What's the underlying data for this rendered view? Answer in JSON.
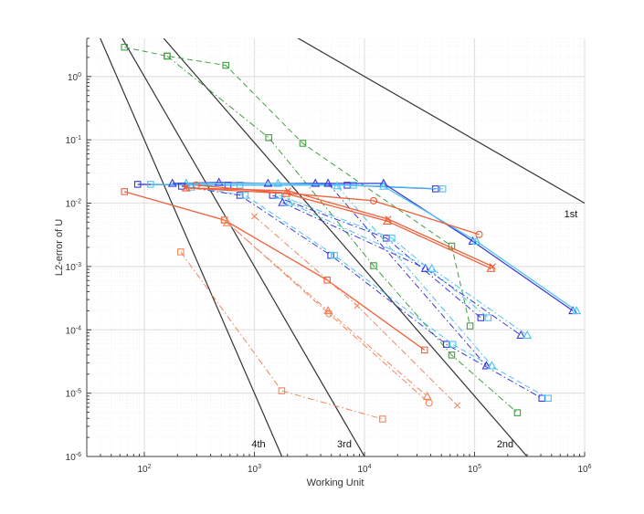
{
  "chart_data": {
    "type": "line",
    "title": "",
    "xlabel": "Working Unit",
    "ylabel": "L2-error of U",
    "xscale": "log",
    "yscale": "log",
    "xlim": [
      30,
      1000000
    ],
    "ylim": [
      1e-06,
      4
    ],
    "grid": "major and minor",
    "legend": "none",
    "x_ticks": [
      100,
      1000,
      10000,
      100000,
      1000000
    ],
    "x_tick_labels": [
      {
        "base": "10",
        "exp": "2"
      },
      {
        "base": "10",
        "exp": "3"
      },
      {
        "base": "10",
        "exp": "4"
      },
      {
        "base": "10",
        "exp": "5"
      },
      {
        "base": "10",
        "exp": "6"
      }
    ],
    "y_ticks": [
      1e-06,
      1e-05,
      0.0001,
      0.001,
      0.01,
      0.1,
      1
    ],
    "y_tick_labels": [
      {
        "base": "10",
        "exp": "-6"
      },
      {
        "base": "10",
        "exp": "-5"
      },
      {
        "base": "10",
        "exp": "-4"
      },
      {
        "base": "10",
        "exp": "-3"
      },
      {
        "base": "10",
        "exp": "-2"
      },
      {
        "base": "10",
        "exp": "-1"
      },
      {
        "base": "10",
        "exp": "0"
      }
    ],
    "reference_lines": [
      {
        "label": "1st",
        "order": 1,
        "color": "#333333",
        "points": [
          [
            10,
            1000
          ],
          [
            1000000,
            0.01
          ]
        ]
      },
      {
        "label": "2nd",
        "order": 2,
        "color": "#333333",
        "points": [
          [
            10,
            900
          ],
          [
            300000,
            1e-06
          ]
        ]
      },
      {
        "label": "3rd",
        "order": 3,
        "color": "#333333",
        "points": [
          [
            10,
            1000
          ],
          [
            10000,
            1e-06
          ]
        ]
      },
      {
        "label": "4th",
        "order": 4,
        "color": "#333333",
        "points": [
          [
            10,
            1000
          ],
          [
            1778,
            1e-06
          ]
        ]
      }
    ],
    "series": [
      {
        "color": "#3f9f3f",
        "dash": "dashed",
        "marker": "square",
        "points": [
          [
            66,
            2.9
          ],
          [
            161,
            2.1
          ],
          [
            550,
            1.5
          ],
          [
            2750,
            0.088
          ],
          [
            62000,
            0.0021
          ],
          [
            91000,
            0.000115
          ]
        ]
      },
      {
        "color": "#3f9f3f",
        "dash": "dashdot",
        "marker": "square",
        "points": [
          [
            161,
            2.1
          ],
          [
            1350,
            0.108
          ],
          [
            12100,
            0.00103
          ],
          [
            62000,
            4e-05
          ],
          [
            245000,
            4.9e-06
          ]
        ]
      },
      {
        "color": "#3838e0",
        "dash": "solid",
        "marker": "square",
        "points": [
          [
            87,
            0.0198
          ],
          [
            575,
            0.0192
          ],
          [
            6970,
            0.0192
          ],
          [
            44200,
            0.0168
          ]
        ]
      },
      {
        "color": "#4cc3f0",
        "dash": "solid",
        "marker": "square",
        "points": [
          [
            114,
            0.0198
          ],
          [
            738,
            0.0192
          ],
          [
            7960,
            0.0192
          ],
          [
            51400,
            0.0168
          ]
        ]
      },
      {
        "color": "#3838e0",
        "dash": "solid",
        "marker": "triangle",
        "points": [
          [
            180,
            0.0205
          ],
          [
            476,
            0.0212
          ],
          [
            1330,
            0.0205
          ],
          [
            3580,
            0.0205
          ],
          [
            14900,
            0.0205
          ],
          [
            96200,
            0.0025
          ],
          [
            781000,
            0.0002
          ]
        ]
      },
      {
        "color": "#4cc3f0",
        "dash": "solid",
        "marker": "triangle",
        "points": [
          [
            240,
            0.0205
          ],
          [
            1640,
            0.0205
          ],
          [
            14900,
            0.0185
          ],
          [
            104000,
            0.0025
          ],
          [
            843000,
            0.0002
          ]
        ]
      },
      {
        "color": "#3838e0",
        "dash": "dashdot",
        "marker": "square",
        "points": [
          [
            218,
            0.0185
          ],
          [
            738,
            0.0133
          ],
          [
            4940,
            0.0015
          ],
          [
            55500,
            5.9e-05
          ],
          [
            409000,
            8.3e-06
          ]
        ]
      },
      {
        "color": "#4cc3f0",
        "dash": "dashed",
        "marker": "square",
        "points": [
          [
            269,
            0.0179
          ],
          [
            826,
            0.0133
          ],
          [
            5330,
            0.0015
          ],
          [
            63400,
            5.9e-05
          ],
          [
            467000,
            8.3e-06
          ]
        ]
      },
      {
        "color": "#3838e0",
        "dash": "dashdot",
        "marker": "square",
        "points": [
          [
            1460,
            0.0133
          ],
          [
            15800,
            0.0028
          ],
          [
            114000,
            0.000155
          ]
        ]
      },
      {
        "color": "#4cc3f0",
        "dash": "dashdot",
        "marker": "square",
        "points": [
          [
            1670,
            0.0133
          ],
          [
            17700,
            0.0028
          ],
          [
            133000,
            0.000155
          ]
        ]
      },
      {
        "color": "#3838e0",
        "dash": "dashdot",
        "marker": "triangle",
        "points": [
          [
            1800,
            0.0102
          ],
          [
            35800,
            0.00093
          ],
          [
            264000,
            8.2e-05
          ]
        ]
      },
      {
        "color": "#4cc3f0",
        "dash": "dashdot",
        "marker": "triangle",
        "points": [
          [
            2060,
            0.0102
          ],
          [
            40900,
            0.00093
          ],
          [
            301000,
            8.2e-05
          ]
        ]
      },
      {
        "color": "#3838e0",
        "dash": "dashdot",
        "marker": "triangle",
        "points": [
          [
            4670,
            0.0205
          ],
          [
            128000,
            2.7e-05
          ]
        ]
      },
      {
        "color": "#4cc3f0",
        "dash": "dashdot",
        "marker": "triangle",
        "points": [
          [
            5650,
            0.0187
          ],
          [
            144000,
            2.7e-05
          ]
        ]
      },
      {
        "color": "#f0603a",
        "dash": "solid",
        "marker": "circle",
        "points": [
          [
            296,
            0.0192
          ],
          [
            12100,
            0.0109
          ],
          [
            110000,
            0.0032
          ]
        ]
      },
      {
        "color": "#f0603a",
        "dash": "solid",
        "marker": "triangle",
        "points": [
          [
            240,
            0.0174
          ],
          [
            1940,
            0.0142
          ],
          [
            16100,
            0.0052
          ],
          [
            141000,
            0.00093
          ]
        ]
      },
      {
        "color": "#f0603a",
        "dash": "solid",
        "marker": "x",
        "points": [
          [
            235,
            0.0174
          ],
          [
            2020,
            0.0157
          ],
          [
            16400,
            0.0056
          ],
          [
            146000,
            0.001
          ]
        ]
      },
      {
        "color": "#f0603a",
        "dash": "solid",
        "marker": "square",
        "points": [
          [
            66,
            0.0152
          ],
          [
            534,
            0.0054
          ],
          [
            4580,
            0.00061
          ],
          [
            35100,
            4.8e-05
          ]
        ]
      },
      {
        "color": "#f4845c",
        "dash": "dashdot",
        "marker": "circle",
        "points": [
          [
            534,
            0.0054
          ],
          [
            4760,
            0.00018
          ],
          [
            38600,
            7e-06
          ]
        ]
      },
      {
        "color": "#f4845c",
        "dash": "dashdot",
        "marker": "triangle",
        "points": [
          [
            565,
            0.0049
          ],
          [
            4670,
            0.0002
          ],
          [
            37200,
            8.9e-06
          ]
        ]
      },
      {
        "color": "#f4845c",
        "dash": "dashdot",
        "marker": "x",
        "points": [
          [
            1000,
            0.0062
          ],
          [
            8590,
            0.00024
          ],
          [
            69700,
            6.4e-06
          ]
        ]
      },
      {
        "color": "#f4845c",
        "dash": "dashdot",
        "marker": "square",
        "points": [
          [
            214,
            0.0017
          ],
          [
            1770,
            1.09e-05
          ],
          [
            14600,
            3.9e-06
          ]
        ]
      }
    ]
  }
}
